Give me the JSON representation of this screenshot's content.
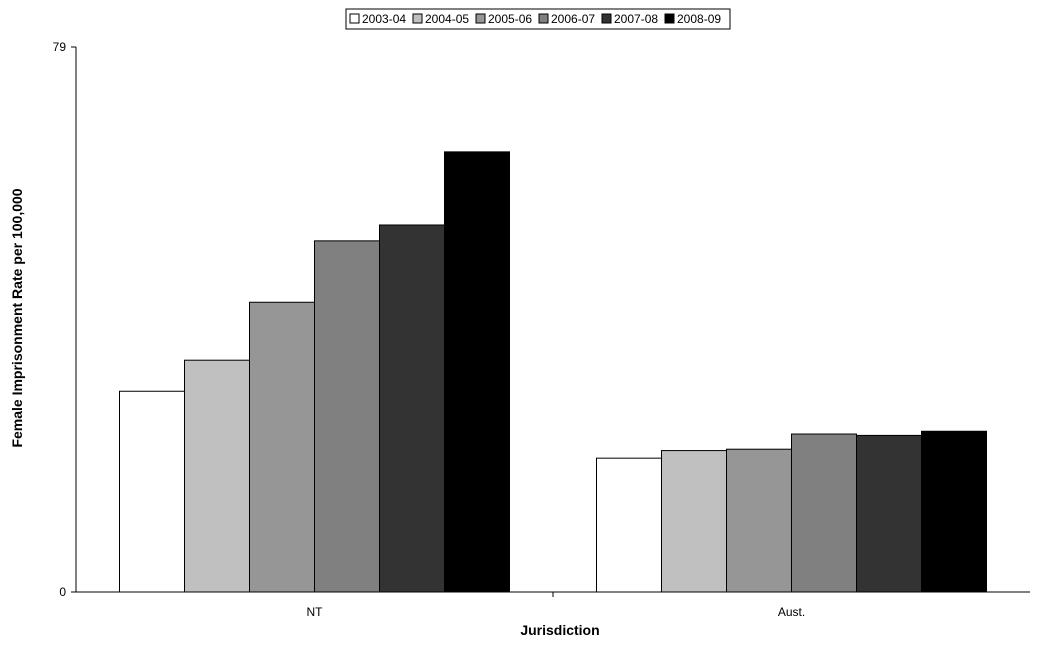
{
  "chart_data": {
    "type": "bar",
    "title": "",
    "xlabel": "Jurisdiction",
    "ylabel": "Female Imprisonment Rate per 100,000",
    "categories": [
      "NT",
      "Aust."
    ],
    "ylim": [
      0,
      79
    ],
    "yticks": [
      "0",
      "79"
    ],
    "grid": false,
    "legend_position": "top-center",
    "series": [
      {
        "name": "2003-04",
        "color": "#ffffff",
        "values": [
          29.1,
          19.4
        ]
      },
      {
        "name": "2004-05",
        "color": "#c0c0c0",
        "values": [
          33.6,
          20.5
        ]
      },
      {
        "name": "2005-06",
        "color": "#969696",
        "values": [
          42.0,
          20.7
        ]
      },
      {
        "name": "2006-07",
        "color": "#808080",
        "values": [
          50.9,
          22.9
        ]
      },
      {
        "name": "2007-08",
        "color": "#333333",
        "values": [
          53.2,
          22.7
        ]
      },
      {
        "name": "2008-09",
        "color": "#000000",
        "values": [
          63.8,
          23.3
        ]
      }
    ]
  }
}
